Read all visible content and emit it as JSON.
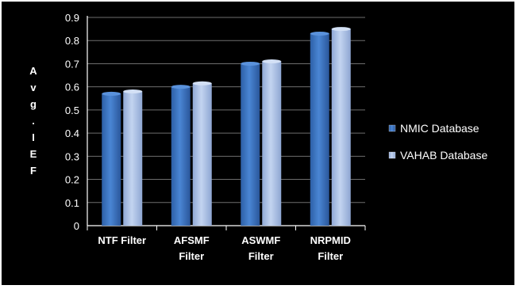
{
  "chart_data": {
    "type": "bar",
    "title": "",
    "xlabel": "",
    "ylabel": "Avg.IEF",
    "ylabel_chars": [
      "A",
      "v",
      "g",
      ".",
      "I",
      "E",
      "F"
    ],
    "ylim": [
      0,
      0.9
    ],
    "yticks": [
      "0",
      "0.1",
      "0.2",
      "0.3",
      "0.4",
      "0.5",
      "0.6",
      "0.7",
      "0.8",
      "0.9"
    ],
    "ytick_values": [
      0,
      0.1,
      0.2,
      0.3,
      0.4,
      0.5,
      0.6,
      0.7,
      0.8,
      0.9
    ],
    "grid": true,
    "legend_position": "right",
    "categories": [
      [
        "NTF Filter"
      ],
      [
        "AFSMF",
        "Filter"
      ],
      [
        "ASWMF",
        "Filter"
      ],
      [
        "NRPMID",
        "Filter"
      ]
    ],
    "series": [
      {
        "name": "NMIC Database",
        "values": [
          0.57,
          0.6,
          0.7,
          0.83
        ],
        "color": "#3c74c0"
      },
      {
        "name": "VAHAB Database",
        "values": [
          0.58,
          0.615,
          0.71,
          0.85
        ],
        "color": "#a9bfe6"
      }
    ]
  },
  "colors": {
    "background": "#000000",
    "text": "#ffffff",
    "grid": "#6e6e6e",
    "axis": "#ffffff"
  }
}
